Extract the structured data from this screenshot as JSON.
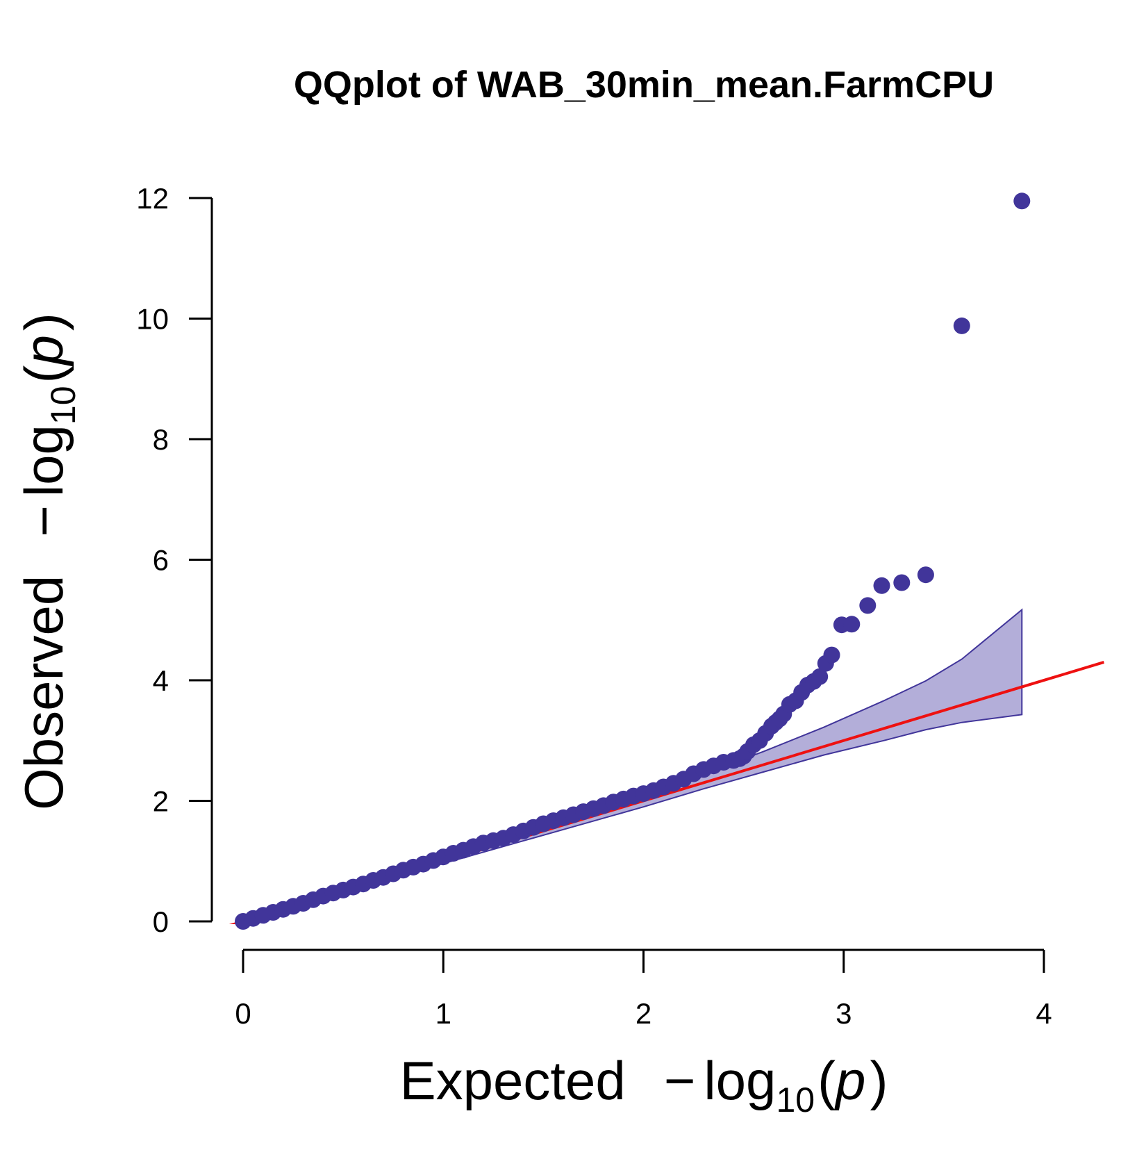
{
  "chart_data": {
    "type": "scatter",
    "title": "QQplot of WAB_30min_mean.FarmCPU",
    "xlabel": {
      "prefix": "Expected",
      "minus": "−",
      "log": "log",
      "base": "10",
      "open": "(",
      "var": "p",
      "close": ")"
    },
    "ylabel": {
      "prefix": "Observed",
      "minus": "−",
      "log": "log",
      "base": "10",
      "open": "(",
      "var": "p",
      "close": ")"
    },
    "xlim": [
      0,
      4
    ],
    "ylim": [
      0,
      12
    ],
    "x_ticks": [
      0,
      1,
      2,
      3,
      4
    ],
    "y_ticks": [
      0,
      2,
      4,
      6,
      8,
      10,
      12
    ],
    "grid": false,
    "colors": {
      "points": "#41359a",
      "band_fill": "#b3aed9",
      "band_stroke": "#41359a",
      "reference_line": "#ee1111",
      "axes": "#000000"
    },
    "reference_line": {
      "slope": 1,
      "intercept": 0
    },
    "confidence_band": {
      "x": [
        0.0,
        0.5,
        1.0,
        1.5,
        2.0,
        2.3,
        2.6,
        2.9,
        3.2,
        3.41,
        3.59,
        3.89
      ],
      "upper": [
        0.0,
        0.52,
        1.04,
        1.56,
        2.1,
        2.45,
        2.82,
        3.22,
        3.66,
        3.99,
        4.35,
        5.17
      ],
      "lower": [
        0.0,
        0.48,
        0.96,
        1.43,
        1.9,
        2.2,
        2.48,
        2.76,
        3.0,
        3.18,
        3.3,
        3.43
      ]
    },
    "series": [
      {
        "x": [
          0.0,
          0.05,
          0.1,
          0.15,
          0.2,
          0.25,
          0.3,
          0.35,
          0.4,
          0.45,
          0.5,
          0.55,
          0.6,
          0.65,
          0.7,
          0.75,
          0.8,
          0.85,
          0.9,
          0.95,
          1.0,
          1.05,
          1.1,
          1.15,
          1.2,
          1.25,
          1.3,
          1.35,
          1.4,
          1.45,
          1.5,
          1.55,
          1.6,
          1.65,
          1.7,
          1.75,
          1.8,
          1.85,
          1.9,
          1.95,
          2.0,
          2.05,
          2.1,
          2.15,
          2.2,
          2.25,
          2.3,
          2.35,
          2.4,
          2.45,
          2.48,
          2.5,
          2.52,
          2.55,
          2.58,
          2.61,
          2.64,
          2.66,
          2.68,
          2.7,
          2.73,
          2.76,
          2.79,
          2.82,
          2.85,
          2.88,
          2.91,
          2.94,
          2.99,
          3.04,
          3.12,
          3.19,
          3.29,
          3.41,
          3.59,
          3.89
        ],
        "y": [
          0.0,
          0.05,
          0.1,
          0.15,
          0.2,
          0.25,
          0.3,
          0.36,
          0.42,
          0.47,
          0.52,
          0.57,
          0.62,
          0.68,
          0.73,
          0.79,
          0.85,
          0.9,
          0.95,
          1.01,
          1.07,
          1.13,
          1.18,
          1.24,
          1.3,
          1.34,
          1.38,
          1.44,
          1.5,
          1.56,
          1.62,
          1.67,
          1.72,
          1.77,
          1.82,
          1.87,
          1.92,
          1.98,
          2.03,
          2.08,
          2.12,
          2.17,
          2.23,
          2.29,
          2.36,
          2.45,
          2.52,
          2.58,
          2.64,
          2.67,
          2.7,
          2.74,
          2.82,
          2.93,
          3.0,
          3.12,
          3.24,
          3.3,
          3.36,
          3.44,
          3.6,
          3.66,
          3.8,
          3.92,
          3.98,
          4.06,
          4.28,
          4.42,
          4.92,
          4.93,
          5.24,
          5.57,
          5.62,
          5.75,
          9.88,
          11.95
        ]
      }
    ]
  }
}
